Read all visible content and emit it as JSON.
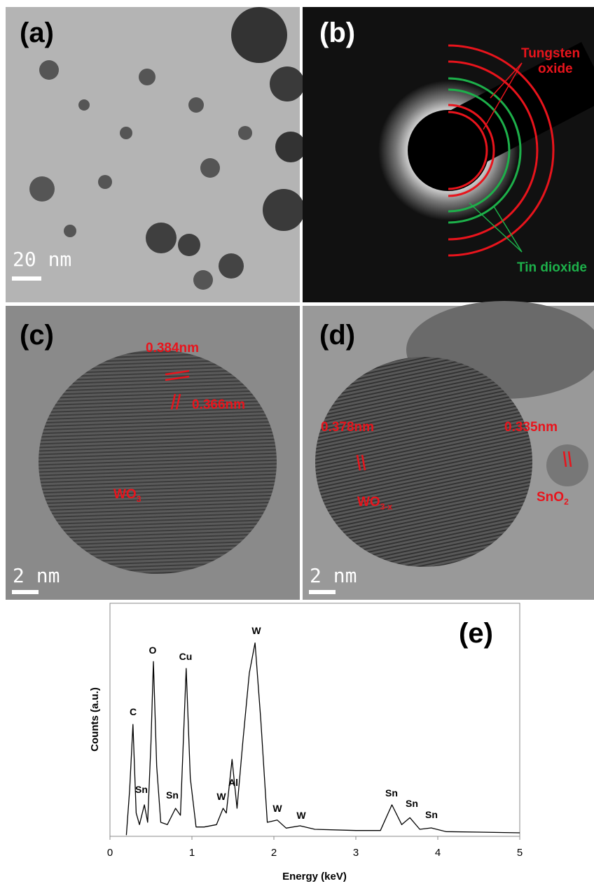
{
  "panel_a": {
    "label": "(a)",
    "scale_bar": "20 nm"
  },
  "panel_b": {
    "label": "(b)",
    "tungsten_oxide": [
      "Tungsten",
      "oxide"
    ],
    "tin_dioxide": "Tin dioxide"
  },
  "panel_c": {
    "label": "(c)",
    "spacings": [
      "0.384nm",
      "0.366nm"
    ],
    "phase": {
      "base": "WO",
      "sub": "3"
    },
    "scale_bar": "2 nm"
  },
  "panel_d": {
    "label": "(d)",
    "spacings": [
      "0.378nm",
      "0.335nm"
    ],
    "phases": [
      {
        "base": "WO",
        "sub": "3-x"
      },
      {
        "base": "SnO",
        "sub": "2"
      }
    ],
    "scale_bar": "2 nm"
  },
  "chart_data": {
    "type": "line",
    "label": "(e)",
    "x_label": "Energy (keV)",
    "y_label": "Counts (a.u.)",
    "x": [
      0.2,
      0.24,
      0.28,
      0.32,
      0.36,
      0.42,
      0.46,
      0.5,
      0.53,
      0.57,
      0.62,
      0.7,
      0.8,
      0.86,
      0.93,
      0.98,
      1.05,
      1.15,
      1.3,
      1.38,
      1.42,
      1.49,
      1.55,
      1.62,
      1.7,
      1.77,
      1.84,
      1.92,
      2.04,
      2.15,
      2.32,
      2.5,
      3.0,
      3.3,
      3.44,
      3.56,
      3.66,
      3.78,
      3.92,
      4.1,
      4.5,
      5.0
    ],
    "values": [
      0.5,
      20,
      48,
      10,
      5,
      13.5,
      6,
      40,
      75,
      30,
      6,
      5,
      12,
      9,
      72,
      25,
      4,
      4,
      5,
      12,
      10,
      33,
      12,
      40,
      70,
      83,
      50,
      6,
      7,
      3.5,
      4.5,
      3,
      2.5,
      2.5,
      13.5,
      5,
      8,
      3,
      3.6,
      2,
      1.8,
      1.5
    ],
    "color": "#000000",
    "xlim": [
      0,
      5
    ],
    "xticks": [
      0,
      1,
      2,
      3,
      4,
      5
    ],
    "ylim": [
      0,
      100
    ],
    "peak_labels": [
      "C",
      "Sn",
      "O",
      "Sn",
      "Cu",
      "W",
      "Al",
      "W",
      "W",
      "W",
      "Sn",
      "Sn",
      "Sn"
    ]
  }
}
